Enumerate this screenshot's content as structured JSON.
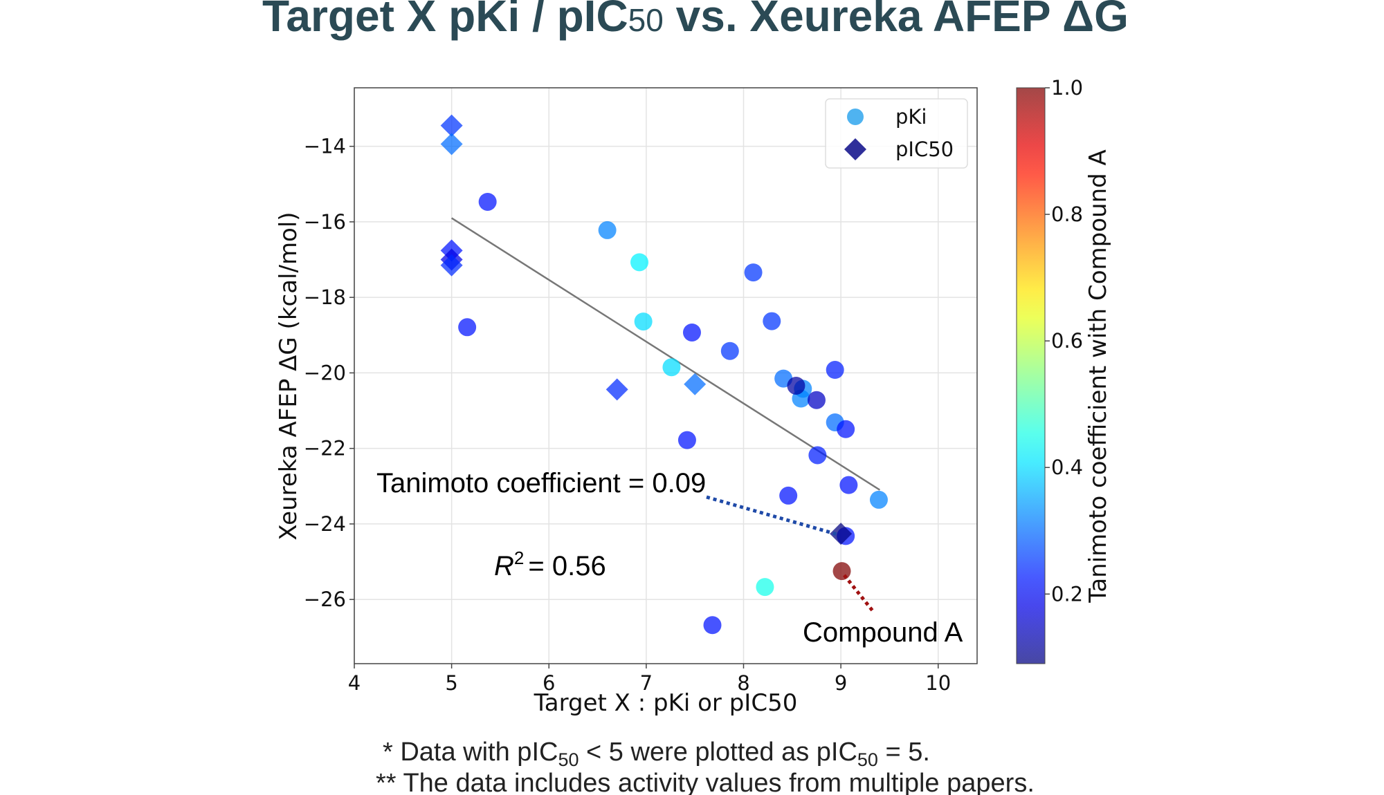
{
  "chart_data": {
    "type": "scatter",
    "title_parts": [
      "Target X pKi / pIC",
      "50",
      " vs. Xeureka AFEP ΔG"
    ],
    "xlabel": "Target X : pKi or pIC50",
    "ylabel": "Xeureka AFEP ΔG (kcal/mol)",
    "xlim": [
      4,
      10.4
    ],
    "ylim": [
      -27.7,
      -12.45
    ],
    "xticks": [
      4,
      5,
      6,
      7,
      8,
      9,
      10
    ],
    "yticks": [
      -14,
      -16,
      -18,
      -20,
      -22,
      -24,
      -26
    ],
    "grid": true,
    "legend_position": "top-right",
    "colormap": "jet",
    "colorbar": {
      "label": "Tanimoto coefficient with Compound A",
      "range": [
        0.09,
        1.0
      ],
      "ticks": [
        0.2,
        0.4,
        0.6,
        0.8,
        1.0
      ],
      "tick_labels": [
        "0.2",
        "0.4",
        "0.6",
        "0.8",
        "1.0"
      ]
    },
    "series": [
      {
        "name": "pKi",
        "marker": "circle",
        "legend_color": "#4fb3f0",
        "points": [
          {
            "x": 5.37,
            "y": -15.47,
            "c": 0.22
          },
          {
            "x": 5.16,
            "y": -18.79,
            "c": 0.22
          },
          {
            "x": 6.6,
            "y": -16.22,
            "c": 0.32
          },
          {
            "x": 6.93,
            "y": -17.07,
            "c": 0.42
          },
          {
            "x": 6.97,
            "y": -18.64,
            "c": 0.4
          },
          {
            "x": 7.26,
            "y": -19.85,
            "c": 0.4
          },
          {
            "x": 7.47,
            "y": -18.93,
            "c": 0.22
          },
          {
            "x": 7.42,
            "y": -21.78,
            "c": 0.22
          },
          {
            "x": 7.68,
            "y": -26.68,
            "c": 0.22
          },
          {
            "x": 7.86,
            "y": -19.42,
            "c": 0.25
          },
          {
            "x": 8.1,
            "y": -17.34,
            "c": 0.25
          },
          {
            "x": 8.29,
            "y": -18.63,
            "c": 0.25
          },
          {
            "x": 8.22,
            "y": -25.67,
            "c": 0.45
          },
          {
            "x": 8.41,
            "y": -20.15,
            "c": 0.3
          },
          {
            "x": 8.61,
            "y": -20.42,
            "c": 0.32
          },
          {
            "x": 8.59,
            "y": -20.68,
            "c": 0.32
          },
          {
            "x": 8.54,
            "y": -20.34,
            "c": 0.12
          },
          {
            "x": 8.75,
            "y": -20.72,
            "c": 0.15
          },
          {
            "x": 8.46,
            "y": -23.25,
            "c": 0.22
          },
          {
            "x": 8.94,
            "y": -19.92,
            "c": 0.23
          },
          {
            "x": 8.94,
            "y": -21.31,
            "c": 0.3
          },
          {
            "x": 9.05,
            "y": -21.49,
            "c": 0.22
          },
          {
            "x": 8.76,
            "y": -22.18,
            "c": 0.23
          },
          {
            "x": 9.08,
            "y": -22.97,
            "c": 0.22
          },
          {
            "x": 9.39,
            "y": -23.36,
            "c": 0.32
          },
          {
            "x": 9.05,
            "y": -24.32,
            "c": 0.22
          },
          {
            "x": 9.01,
            "y": -25.25,
            "c": 1.0
          }
        ]
      },
      {
        "name": "pIC50",
        "marker": "diamond",
        "legend_color": "#2f2f9a",
        "points": [
          {
            "x": 5.0,
            "y": -13.45,
            "c": 0.25
          },
          {
            "x": 5.0,
            "y": -13.94,
            "c": 0.3
          },
          {
            "x": 5.0,
            "y": -16.76,
            "c": 0.22
          },
          {
            "x": 5.0,
            "y": -17.0,
            "c": 0.18
          },
          {
            "x": 5.0,
            "y": -17.15,
            "c": 0.24
          },
          {
            "x": 6.7,
            "y": -20.44,
            "c": 0.24
          },
          {
            "x": 7.5,
            "y": -20.3,
            "c": 0.3
          },
          {
            "x": 9.0,
            "y": -24.26,
            "c": 0.09
          }
        ]
      }
    ],
    "regression_line": {
      "x": [
        5.0,
        9.4
      ],
      "y": [
        -15.9,
        -23.1
      ],
      "r2_label": "= 0.56",
      "r2_symbol": "R",
      "r2_sup": "2"
    },
    "annotations": {
      "tanimoto": "Tanimoto coefficient = 0.09",
      "compound": "Compound A"
    },
    "footnotes": {
      "line1_parts": [
        "* Data with pIC",
        "50",
        " < 5 were plotted as pIC",
        "50",
        " = 5."
      ],
      "line2": "** The data includes activity values from multiple papers."
    }
  }
}
